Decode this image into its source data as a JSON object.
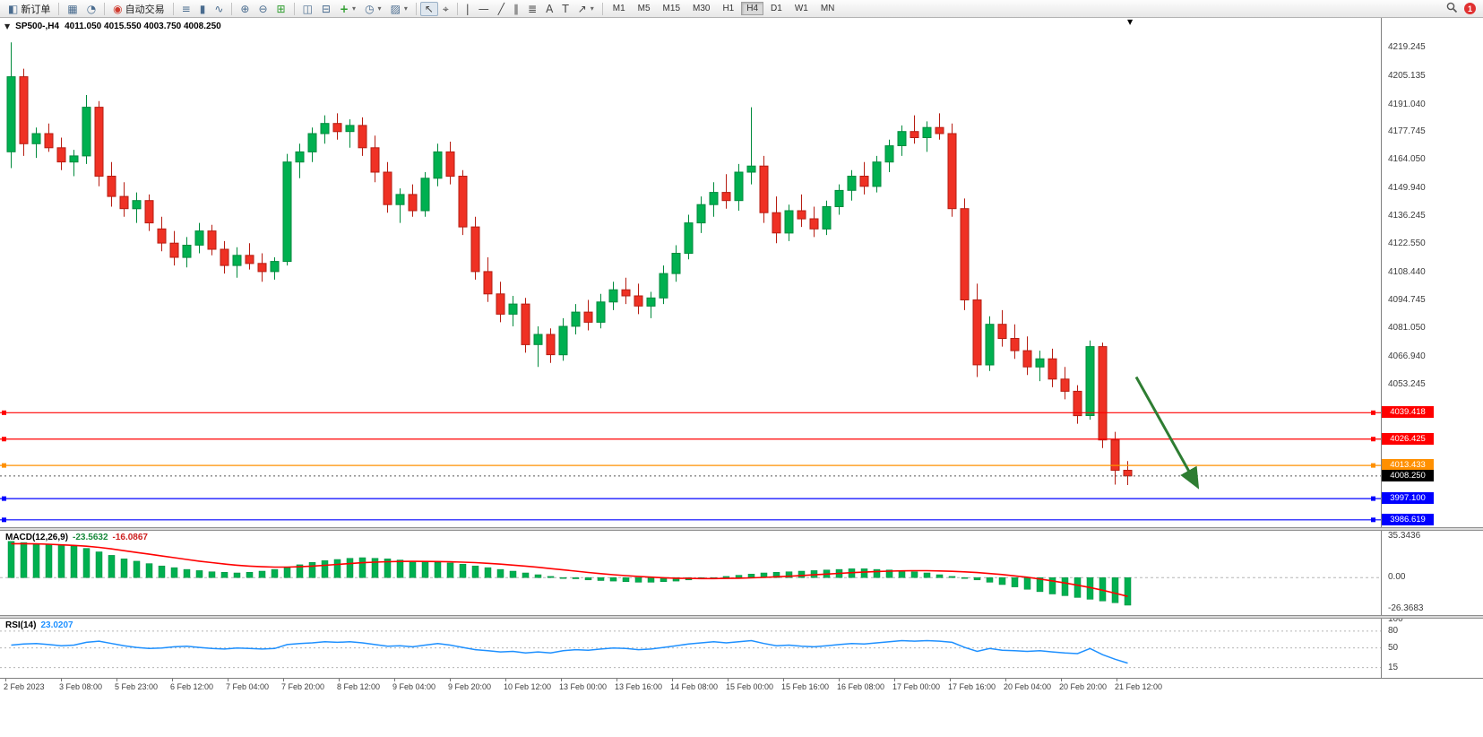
{
  "toolbar": {
    "new_order_label": "新订单",
    "auto_trading_label": "自动交易",
    "timeframes": [
      "M1",
      "M5",
      "M15",
      "M30",
      "H1",
      "H4",
      "D1",
      "W1",
      "MN"
    ],
    "active_timeframe": "H4",
    "notification_count": "1",
    "icons": {
      "new_order": "◧",
      "chart_profile": "▦",
      "market_watch": "◔",
      "auto_trading": "◉",
      "bars": "≡",
      "candles": "▮",
      "line_chart": "∿",
      "zoom_in": "⊕",
      "zoom_out": "⊖",
      "tile_grid": "⊞",
      "layout_a": "◫",
      "layout_b": "⊟",
      "add_indicator": "+",
      "clock": "◷",
      "templates": "▨",
      "cursor": "↖",
      "crosshair": "⌖",
      "vline": "|",
      "hline": "—",
      "trendline": "╱",
      "channel": "∥",
      "fibonacci": "≣",
      "text": "A",
      "label": "T",
      "arrows": "↗",
      "dropdown": "▾"
    }
  },
  "chart": {
    "collapse_arrow": "▼",
    "shift_marker": "▼",
    "title": "SP500-,H4",
    "ohlc": "4011.050 4015.550 4003.750 4008.250",
    "price_axis_labels": [
      "4219.245",
      "4205.135",
      "4191.040",
      "4177.745",
      "4164.050",
      "4149.940",
      "4136.245",
      "4122.550",
      "4108.440",
      "4094.745",
      "4081.050",
      "4066.940",
      "4053.245"
    ],
    "levels": [
      {
        "label": "4039.418",
        "price": 4039.418,
        "color": "#ff0000"
      },
      {
        "label": "4026.425",
        "price": 4026.425,
        "color": "#ff0000"
      },
      {
        "label": "4013.433",
        "price": 4013.433,
        "color": "#ff9000"
      },
      {
        "label": "3997.100",
        "price": 3997.1,
        "color": "#0000ff"
      },
      {
        "label": "3986.619",
        "price": 3986.619,
        "color": "#0000ff"
      }
    ],
    "current_price": {
      "label": "4008.250",
      "price": 4008.25,
      "color": "#000000"
    },
    "arrow_object": {
      "bar_from": 90,
      "price_from": 4057,
      "bar_to": 94.8,
      "price_to": 4004
    },
    "chart_data": {
      "type": "candlestick",
      "symbol": "SP500-",
      "timeframe": "H4",
      "y_range": [
        3983,
        4234
      ],
      "candles": [
        [
          4168,
          4222,
          4160,
          4205
        ],
        [
          4205,
          4209,
          4166,
          4172
        ],
        [
          4172,
          4180,
          4165,
          4177
        ],
        [
          4177,
          4182,
          4168,
          4170
        ],
        [
          4170,
          4175,
          4159,
          4163
        ],
        [
          4163,
          4169,
          4156,
          4166
        ],
        [
          4166,
          4196,
          4162,
          4190
        ],
        [
          4190,
          4193,
          4151,
          4156
        ],
        [
          4156,
          4163,
          4141,
          4146
        ],
        [
          4146,
          4153,
          4136,
          4140
        ],
        [
          4140,
          4148,
          4133,
          4144
        ],
        [
          4144,
          4147,
          4129,
          4133
        ],
        [
          4130,
          4136,
          4119,
          4123
        ],
        [
          4123,
          4129,
          4112,
          4116
        ],
        [
          4116,
          4126,
          4111,
          4122
        ],
        [
          4122,
          4133,
          4118,
          4129
        ],
        [
          4129,
          4132,
          4117,
          4120
        ],
        [
          4120,
          4124,
          4108,
          4112
        ],
        [
          4112,
          4121,
          4106,
          4117
        ],
        [
          4117,
          4123,
          4110,
          4113
        ],
        [
          4113,
          4118,
          4104,
          4109
        ],
        [
          4109,
          4116,
          4105,
          4114
        ],
        [
          4114,
          4167,
          4112,
          4163
        ],
        [
          4163,
          4172,
          4155,
          4168
        ],
        [
          4168,
          4180,
          4163,
          4177
        ],
        [
          4177,
          4186,
          4172,
          4182
        ],
        [
          4182,
          4187,
          4174,
          4178
        ],
        [
          4178,
          4184,
          4170,
          4181
        ],
        [
          4181,
          4185,
          4166,
          4170
        ],
        [
          4170,
          4176,
          4153,
          4158
        ],
        [
          4158,
          4163,
          4138,
          4142
        ],
        [
          4142,
          4150,
          4133,
          4147
        ],
        [
          4147,
          4152,
          4136,
          4139
        ],
        [
          4139,
          4158,
          4136,
          4155
        ],
        [
          4155,
          4172,
          4151,
          4168
        ],
        [
          4168,
          4173,
          4152,
          4156
        ],
        [
          4156,
          4159,
          4127,
          4131
        ],
        [
          4131,
          4136,
          4105,
          4109
        ],
        [
          4109,
          4116,
          4094,
          4098
        ],
        [
          4098,
          4104,
          4084,
          4088
        ],
        [
          4088,
          4097,
          4082,
          4093
        ],
        [
          4093,
          4096,
          4069,
          4073
        ],
        [
          4073,
          4082,
          4062,
          4078
        ],
        [
          4078,
          4081,
          4064,
          4068
        ],
        [
          4068,
          4086,
          4065,
          4082
        ],
        [
          4082,
          4093,
          4078,
          4089
        ],
        [
          4089,
          4095,
          4080,
          4084
        ],
        [
          4084,
          4098,
          4081,
          4094
        ],
        [
          4094,
          4104,
          4090,
          4100
        ],
        [
          4100,
          4106,
          4093,
          4097
        ],
        [
          4097,
          4103,
          4088,
          4092
        ],
        [
          4092,
          4099,
          4086,
          4096
        ],
        [
          4096,
          4112,
          4093,
          4108
        ],
        [
          4108,
          4122,
          4104,
          4118
        ],
        [
          4118,
          4137,
          4115,
          4133
        ],
        [
          4133,
          4146,
          4128,
          4142
        ],
        [
          4142,
          4153,
          4136,
          4148
        ],
        [
          4148,
          4157,
          4140,
          4144
        ],
        [
          4144,
          4162,
          4139,
          4158
        ],
        [
          4158,
          4190,
          4152,
          4161
        ],
        [
          4161,
          4166,
          4133,
          4138
        ],
        [
          4138,
          4146,
          4123,
          4128
        ],
        [
          4128,
          4142,
          4124,
          4139
        ],
        [
          4139,
          4147,
          4131,
          4135
        ],
        [
          4135,
          4141,
          4126,
          4130
        ],
        [
          4130,
          4144,
          4127,
          4141
        ],
        [
          4141,
          4152,
          4137,
          4149
        ],
        [
          4149,
          4159,
          4144,
          4156
        ],
        [
          4156,
          4163,
          4147,
          4151
        ],
        [
          4151,
          4166,
          4148,
          4163
        ],
        [
          4163,
          4174,
          4158,
          4171
        ],
        [
          4171,
          4181,
          4166,
          4178
        ],
        [
          4178,
          4186,
          4172,
          4175
        ],
        [
          4175,
          4183,
          4168,
          4180
        ],
        [
          4180,
          4187,
          4174,
          4177
        ],
        [
          4177,
          4182,
          4136,
          4140
        ],
        [
          4140,
          4145,
          4090,
          4095
        ],
        [
          4095,
          4103,
          4057,
          4063
        ],
        [
          4063,
          4087,
          4060,
          4083
        ],
        [
          4083,
          4090,
          4072,
          4076
        ],
        [
          4076,
          4083,
          4066,
          4070
        ],
        [
          4070,
          4077,
          4058,
          4062
        ],
        [
          4062,
          4070,
          4055,
          4066
        ],
        [
          4066,
          4071,
          4052,
          4056
        ],
        [
          4056,
          4062,
          4046,
          4050
        ],
        [
          4050,
          4053,
          4034,
          4038
        ],
        [
          4038,
          4075,
          4036,
          4072
        ],
        [
          4072,
          4074,
          4022,
          4026
        ],
        [
          4026,
          4030,
          4004,
          4011
        ],
        [
          4011.05,
          4015.55,
          4003.75,
          4008.25
        ]
      ]
    }
  },
  "macd": {
    "name": "MACD(12,26,9)",
    "value_main": "-23.5632",
    "value_signal": "-16.0867",
    "axis_labels": [
      "35.3436",
      "0.00",
      "-26.3683"
    ],
    "axis_values": [
      35.3436,
      0,
      -26.3683
    ],
    "histogram": [
      31,
      30,
      29,
      28.5,
      28,
      27,
      25,
      22,
      19,
      16,
      14,
      12,
      10,
      8.5,
      7,
      6,
      5,
      4.5,
      4,
      4.5,
      5.5,
      7,
      9,
      11,
      13,
      14.5,
      15.5,
      16.5,
      17,
      16.5,
      16,
      15,
      14,
      13.5,
      13,
      12.5,
      11.5,
      10,
      8.5,
      7,
      5.5,
      4,
      2.5,
      1,
      0,
      -1,
      -2,
      -2.5,
      -3,
      -3.5,
      -4,
      -4,
      -3.5,
      -3,
      -2,
      -1,
      0,
      1,
      2,
      3,
      4,
      4.5,
      5,
      5.5,
      6,
      6.5,
      7,
      7.5,
      7.5,
      7,
      6.5,
      6,
      5,
      4,
      2.5,
      1,
      -0.5,
      -2,
      -4,
      -6,
      -8,
      -10,
      -12,
      -14,
      -15.5,
      -17,
      -18.5,
      -20,
      -21.5,
      -23.5632
    ],
    "signal": [
      29,
      29,
      28.8,
      28.5,
      28,
      27.5,
      26.8,
      25.8,
      24.5,
      23,
      21.5,
      20,
      18.5,
      17,
      15.5,
      14,
      12.8,
      11.6,
      10.6,
      9.8,
      9.3,
      9,
      9,
      9.3,
      9.8,
      10.5,
      11.3,
      12,
      12.7,
      13.2,
      13.6,
      13.8,
      13.9,
      13.8,
      13.7,
      13.5,
      13.2,
      12.8,
      12.2,
      11.5,
      10.7,
      9.8,
      8.8,
      7.7,
      6.6,
      5.5,
      4.4,
      3.4,
      2.5,
      1.7,
      1,
      0.4,
      -0.1,
      -0.5,
      -0.7,
      -0.8,
      -0.8,
      -0.7,
      -0.5,
      -0.2,
      0.2,
      0.7,
      1.2,
      1.8,
      2.4,
      3,
      3.6,
      4.2,
      4.7,
      5.2,
      5.5,
      5.8,
      5.9,
      5.9,
      5.7,
      5.4,
      4.9,
      4.3,
      3.5,
      2.6,
      1.5,
      0.3,
      -1.2,
      -2.8,
      -4.6,
      -6.5,
      -8.5,
      -10.8,
      -13.3,
      -16.0867
    ]
  },
  "rsi": {
    "name": "RSI(14)",
    "value": "23.0207",
    "axis_labels": [
      "100",
      "80",
      "50",
      "15"
    ],
    "axis_values": [
      100,
      80,
      50,
      15
    ],
    "levels": [
      80,
      50,
      15
    ],
    "values": [
      55,
      57,
      58,
      56,
      54,
      55,
      60,
      62,
      58,
      54,
      51,
      49,
      50,
      52,
      53,
      51,
      49,
      48,
      50,
      49,
      48,
      49,
      56,
      58,
      59,
      61,
      60,
      61,
      59,
      56,
      53,
      54,
      52,
      55,
      58,
      55,
      51,
      47,
      45,
      43,
      44,
      41,
      43,
      41,
      45,
      47,
      46,
      48,
      50,
      49,
      47,
      48,
      51,
      54,
      57,
      59,
      61,
      59,
      61,
      63,
      58,
      54,
      55,
      53,
      52,
      54,
      56,
      58,
      57,
      59,
      61,
      63,
      62,
      63,
      62,
      60,
      51,
      44,
      49,
      46,
      45,
      44,
      45,
      43,
      41,
      40,
      49,
      38,
      30,
      23.0207
    ]
  },
  "time_axis": {
    "labels": [
      "2 Feb 2023",
      "3 Feb 08:00",
      "5 Feb 23:00",
      "6 Feb 12:00",
      "7 Feb 04:00",
      "7 Feb 20:00",
      "8 Feb 12:00",
      "9 Feb 04:00",
      "9 Feb 20:00",
      "10 Feb 12:00",
      "13 Feb 00:00",
      "13 Feb 16:00",
      "14 Feb 08:00",
      "15 Feb 00:00",
      "15 Feb 16:00",
      "16 Feb 08:00",
      "17 Feb 00:00",
      "17 Feb 16:00",
      "20 Feb 04:00",
      "20 Feb 20:00",
      "21 Feb 12:00"
    ]
  },
  "colors": {
    "candle_up": "#00b050",
    "candle_up_border": "#008a3c",
    "candle_down": "#ef3124",
    "candle_down_border": "#b61d12",
    "macd_histogram": "#00b050",
    "macd_signal": "#ff0000",
    "rsi_line": "#1e90ff",
    "arrow": "#2e7d32",
    "current_price_badge": "#000000"
  }
}
